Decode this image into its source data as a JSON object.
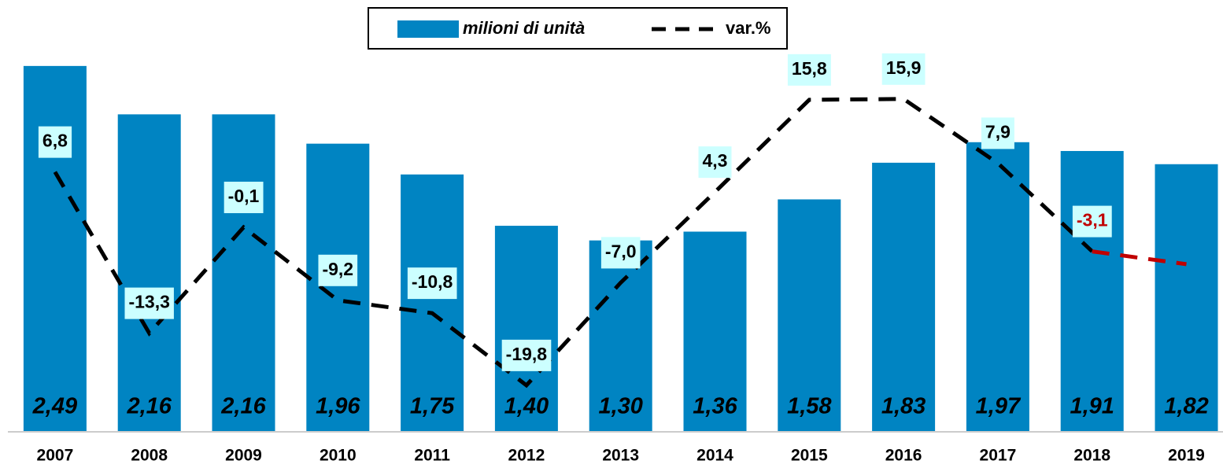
{
  "chart_data": {
    "type": "bar_line",
    "categories": [
      "2007",
      "2008",
      "2009",
      "2010",
      "2011",
      "2012",
      "2013",
      "2014",
      "2015",
      "2016",
      "2017",
      "2018",
      "2019"
    ],
    "series": [
      {
        "name": "milioni di unità",
        "type": "bar",
        "color": "#0084c2",
        "values": [
          2.49,
          2.16,
          2.16,
          1.96,
          1.75,
          1.4,
          1.3,
          1.36,
          1.58,
          1.83,
          1.97,
          1.91,
          1.82
        ],
        "value_labels": [
          "2,49",
          "2,16",
          "2,16",
          "1,96",
          "1,75",
          "1,40",
          "1,30",
          "1,36",
          "1,58",
          "1,83",
          "1,97",
          "1,91",
          "1,82"
        ]
      },
      {
        "name": "var.%",
        "type": "line",
        "axis": "y2",
        "color": "#000000",
        "highlight_color": "#c00000",
        "highlight_from": 11,
        "values": [
          6.8,
          -13.3,
          -0.1,
          -9.2,
          -10.8,
          -19.8,
          -7.0,
          4.3,
          15.8,
          15.9,
          7.9,
          -3.1,
          -4.7
        ],
        "value_labels": [
          "6,8",
          "-13,3",
          "-0,1",
          "-9,2",
          "-10,8",
          "-19,8",
          "-7,0",
          "4,3",
          "15,8",
          "15,9",
          "7,9",
          "-3,1",
          null
        ]
      }
    ],
    "ylim": [
      0,
      2.5
    ],
    "y2lim": [
      -25.5,
      20.2
    ],
    "legend": "top"
  }
}
